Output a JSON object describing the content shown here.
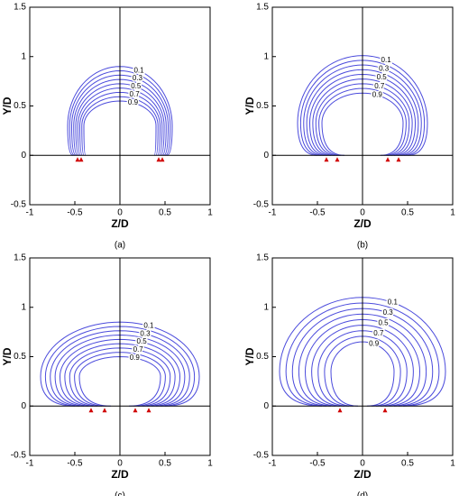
{
  "chart_data": [
    {
      "type": "contour",
      "caption": "(a)",
      "xlabel": "Z/D",
      "ylabel": "Y/D",
      "xlim": [
        -1,
        1
      ],
      "ylim": [
        -0.5,
        1.5
      ],
      "xticks": [
        -1,
        -0.5,
        0,
        0.5,
        1
      ],
      "yticks": [
        -0.5,
        0,
        0.5,
        1,
        1.5
      ],
      "levels": [
        0.1,
        0.2,
        0.3,
        0.4,
        0.5,
        0.6,
        0.7,
        0.8,
        0.9
      ],
      "contour_labels": [
        0.1,
        0.3,
        0.5,
        0.7,
        0.9
      ],
      "line_color": "#4b4bdc",
      "markers_z": [
        -0.47,
        -0.43,
        0.43,
        0.47
      ],
      "markers_y": [
        0,
        0,
        0,
        0
      ],
      "marker_color": "#d00000"
    },
    {
      "type": "contour",
      "caption": "(b)",
      "xlabel": "Z/D",
      "ylabel": "Y/D",
      "xlim": [
        -1,
        1
      ],
      "ylim": [
        -0.5,
        1.5
      ],
      "xticks": [
        -1,
        -0.5,
        0,
        0.5,
        1
      ],
      "yticks": [
        -0.5,
        0,
        0.5,
        1,
        1.5
      ],
      "levels": [
        0.1,
        0.2,
        0.3,
        0.4,
        0.5,
        0.6,
        0.7,
        0.8,
        0.9
      ],
      "contour_labels": [
        0.1,
        0.3,
        0.5,
        0.7,
        0.9
      ],
      "line_color": "#4b4bdc",
      "markers_z": [
        -0.4,
        -0.28,
        0.28,
        0.4
      ],
      "markers_y": [
        0,
        0,
        0,
        0
      ],
      "marker_color": "#d00000"
    },
    {
      "type": "contour",
      "caption": "(c)",
      "xlabel": "Z/D",
      "ylabel": "Y/D",
      "xlim": [
        -1,
        1
      ],
      "ylim": [
        -0.5,
        1.5
      ],
      "xticks": [
        -1,
        -0.5,
        0,
        0.5,
        1
      ],
      "yticks": [
        -0.5,
        0,
        0.5,
        1,
        1.5
      ],
      "levels": [
        0.1,
        0.2,
        0.3,
        0.4,
        0.5,
        0.6,
        0.7,
        0.8,
        0.9
      ],
      "contour_labels": [
        0.1,
        0.3,
        0.5,
        0.7,
        0.9
      ],
      "line_color": "#4b4bdc",
      "markers_z": [
        -0.32,
        -0.17,
        0.17,
        0.32
      ],
      "markers_y": [
        0,
        0,
        0,
        0
      ],
      "marker_color": "#d00000"
    },
    {
      "type": "contour",
      "caption": "(d)",
      "xlabel": "Z/D",
      "ylabel": "Y/D",
      "xlim": [
        -1,
        1
      ],
      "ylim": [
        -0.5,
        1.5
      ],
      "xticks": [
        -1,
        -0.5,
        0,
        0.5,
        1
      ],
      "yticks": [
        -0.5,
        0,
        0.5,
        1,
        1.5
      ],
      "levels": [
        0.1,
        0.2,
        0.3,
        0.4,
        0.5,
        0.6,
        0.7,
        0.8,
        0.9
      ],
      "contour_labels": [
        0.1,
        0.3,
        0.5,
        0.7,
        0.9
      ],
      "line_color": "#4b4bdc",
      "markers_z": [
        -0.25,
        0.25
      ],
      "markers_y": [
        0,
        0
      ],
      "marker_color": "#d00000"
    }
  ]
}
